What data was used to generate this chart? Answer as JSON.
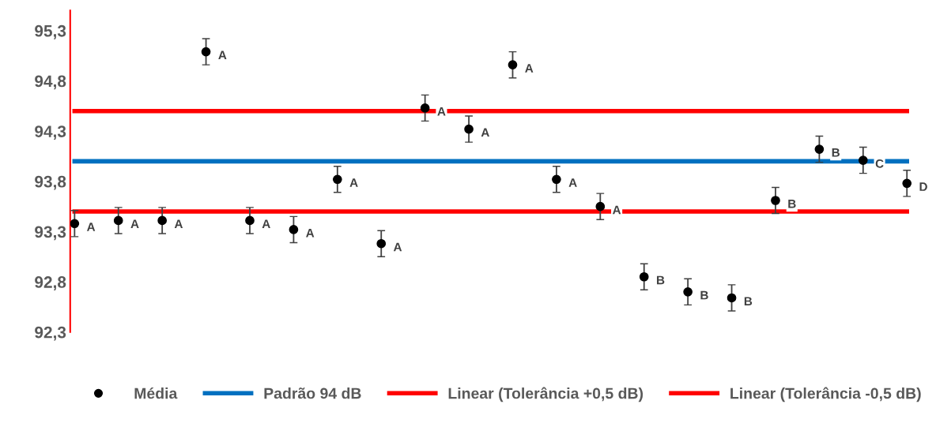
{
  "chart_data": {
    "type": "scatter",
    "categories": [
      null,
      null,
      null,
      null,
      null,
      null,
      null,
      null,
      null,
      null,
      null,
      null,
      null,
      null,
      null,
      null,
      null,
      null,
      null,
      null
    ],
    "series": [
      {
        "name": "Média",
        "color": "#000000",
        "marker": "circle",
        "values": [
          93.38,
          93.41,
          93.41,
          95.09,
          93.41,
          93.32,
          93.82,
          93.18,
          94.53,
          94.32,
          94.96,
          93.82,
          93.55,
          92.85,
          92.7,
          92.64,
          93.61,
          94.12,
          94.01,
          93.78
        ],
        "errors": [
          0.13,
          0.13,
          0.13,
          0.13,
          0.13,
          0.13,
          0.13,
          0.13,
          0.13,
          0.13,
          0.13,
          0.13,
          0.13,
          0.13,
          0.13,
          0.13,
          0.13,
          0.13,
          0.13,
          0.13
        ],
        "value_labels": [
          "A",
          "A",
          "A",
          "A",
          "A",
          "A",
          "A",
          "A",
          "A",
          "A",
          "A",
          "A",
          "A",
          "B",
          "B",
          "B",
          "B",
          "B",
          "C",
          "D"
        ]
      },
      {
        "name": "Padrão 94 dB",
        "type": "line",
        "color": "#0070c0",
        "values": [
          94.0,
          94.0,
          94.0,
          94.0,
          94.0,
          94.0,
          94.0,
          94.0,
          94.0,
          94.0,
          94.0,
          94.0,
          94.0,
          94.0,
          94.0,
          94.0,
          94.0,
          94.0,
          94.0,
          94.0
        ]
      },
      {
        "name": "Linear (Tolerância +0,5 dB)",
        "type": "line",
        "color": "#ff0000",
        "values": [
          94.5,
          94.5,
          94.5,
          94.5,
          94.5,
          94.5,
          94.5,
          94.5,
          94.5,
          94.5,
          94.5,
          94.5,
          94.5,
          94.5,
          94.5,
          94.5,
          94.5,
          94.5,
          94.5,
          94.5
        ]
      },
      {
        "name": "Linear (Tolerância -0,5 dB)",
        "type": "line",
        "color": "#ff0000",
        "values": [
          93.5,
          93.5,
          93.5,
          93.5,
          93.5,
          93.5,
          93.5,
          93.5,
          93.5,
          93.5,
          93.5,
          93.5,
          93.5,
          93.5,
          93.5,
          93.5,
          93.5,
          93.5,
          93.5,
          93.5
        ]
      }
    ],
    "ylim": [
      92.3,
      95.5
    ],
    "yticks": [
      {
        "value": 92.3,
        "label": "92,3"
      },
      {
        "value": 92.8,
        "label": "92,8"
      },
      {
        "value": 93.3,
        "label": "93,3"
      },
      {
        "value": 93.8,
        "label": "93,8"
      },
      {
        "value": 94.3,
        "label": "94,3"
      },
      {
        "value": 94.8,
        "label": "94,8"
      },
      {
        "value": 95.3,
        "label": "95,3"
      }
    ],
    "tick_labels": "y",
    "grid": false,
    "legend": "bottom"
  }
}
